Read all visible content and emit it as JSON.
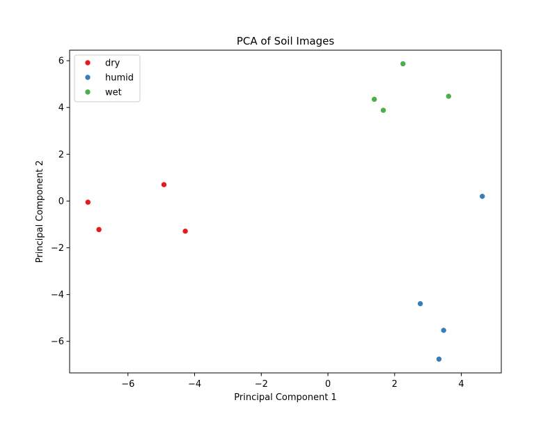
{
  "chart_data": {
    "type": "scatter",
    "title": "PCA of Soil Images",
    "xlabel": "Principal Component 1",
    "ylabel": "Principal Component 2",
    "xlim": [
      -7.75,
      5.2
    ],
    "ylim": [
      -7.35,
      6.45
    ],
    "xticks": [
      -6,
      -4,
      -2,
      0,
      2,
      4
    ],
    "yticks": [
      -6,
      -4,
      -2,
      0,
      2,
      4,
      6
    ],
    "xtick_labels": [
      "−6",
      "−4",
      "−2",
      "0",
      "2",
      "4"
    ],
    "ytick_labels": [
      "−6",
      "−4",
      "−2",
      "0",
      "2",
      "4",
      "6"
    ],
    "grid": false,
    "legend_position": "upper-left",
    "series": [
      {
        "name": "dry",
        "color": "#e41a1c",
        "points": [
          [
            -7.2,
            -0.05
          ],
          [
            -6.87,
            -1.22
          ],
          [
            -4.92,
            0.7
          ],
          [
            -4.28,
            -1.29
          ]
        ]
      },
      {
        "name": "humid",
        "color": "#377eb8",
        "points": [
          [
            4.63,
            0.2
          ],
          [
            2.77,
            -4.39
          ],
          [
            3.47,
            -5.53
          ],
          [
            3.33,
            -6.76
          ]
        ]
      },
      {
        "name": "wet",
        "color": "#4daf4a",
        "points": [
          [
            2.25,
            5.87
          ],
          [
            1.39,
            4.35
          ],
          [
            1.66,
            3.88
          ],
          [
            3.62,
            4.48
          ]
        ]
      }
    ]
  }
}
